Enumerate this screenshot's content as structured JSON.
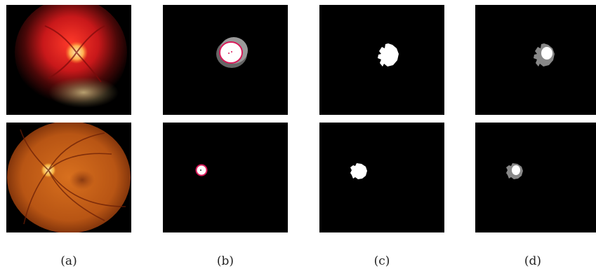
{
  "captions": {
    "a": "(a)",
    "b": "(b)",
    "c": "(c)",
    "d": "(d)"
  },
  "colors": {
    "background": "#000000",
    "contour": "#d81b5a",
    "mask_white": "#ffffff",
    "mask_gray": "#888888"
  }
}
